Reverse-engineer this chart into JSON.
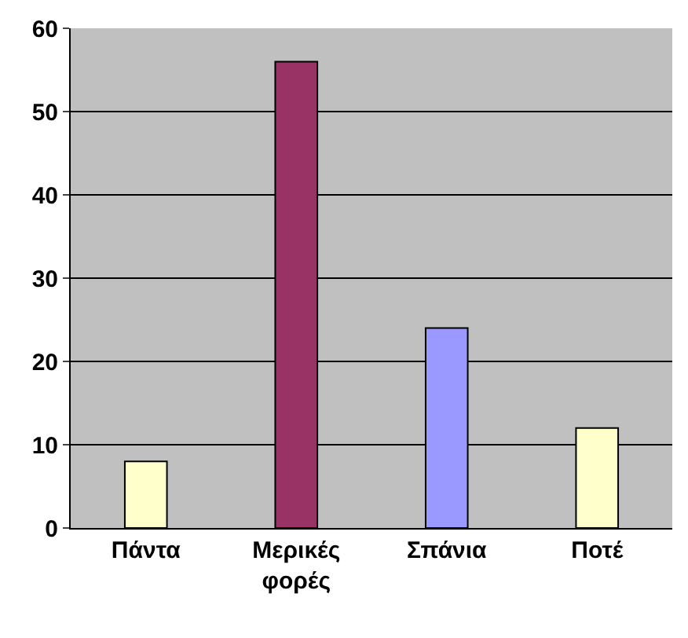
{
  "chart_data": {
    "type": "bar",
    "categories": [
      "Πάντα",
      "Μερικές φορές",
      "Σπάνια",
      "Ποτέ"
    ],
    "values": [
      8,
      56,
      24,
      12
    ],
    "colors": [
      "#ffffcc",
      "#993366",
      "#9999ff",
      "#ffffcc"
    ],
    "ylim": [
      0,
      60
    ],
    "yticks": [
      0,
      10,
      20,
      30,
      40,
      50,
      60
    ],
    "grid": "y"
  }
}
